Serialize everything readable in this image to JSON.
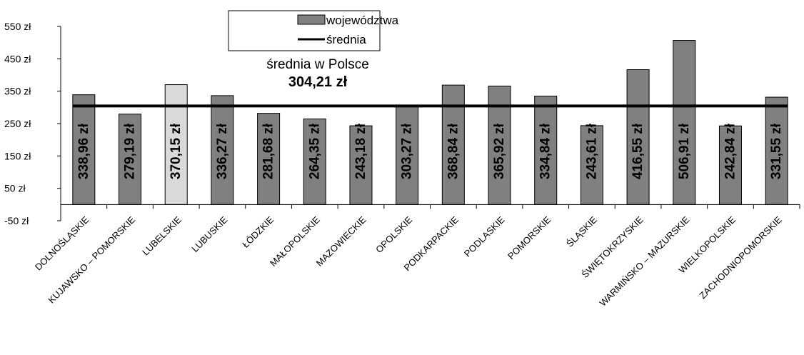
{
  "chart_data": {
    "type": "bar",
    "categories": [
      "DOLNOŚLĄSKIE",
      "KUJAWSKO – POMORSKIE",
      "LUBELSKIE",
      "LUBUSKIE",
      "ŁÓDZKIE",
      "MAŁOPOLSKIE",
      "MAZOWIECKIE",
      "OPOLSKIE",
      "PODKARPACKIE",
      "PODLASKIE",
      "POMORSKIE",
      "ŚLĄSKIE",
      "ŚWIĘTOKRZYSKIE",
      "WARMIŃSKO – MAZURSKIE",
      "WIELKOPOLSKIE",
      "ZACHODNIOPOMORSKIE"
    ],
    "series": [
      {
        "name": "województwa",
        "values": [
          338.96,
          279.19,
          370.15,
          336.27,
          281.68,
          264.35,
          243.18,
          303.27,
          368.84,
          365.92,
          334.84,
          243.61,
          416.55,
          506.91,
          242.84,
          331.55
        ],
        "labels": [
          "338,96 zł",
          "279,19 zł",
          "370,15 zł",
          "336,27 zł",
          "281,68 zł",
          "264,35 zł",
          "243,18 zł",
          "303,27 zł",
          "368,84 zł",
          "365,92 zł",
          "334,84 zł",
          "243,61 zł",
          "416,55 zł",
          "506,91 zł",
          "242,84 zł",
          "331,55 zł"
        ]
      },
      {
        "name": "średnia",
        "value": 304.21
      }
    ],
    "highlight_index": 2,
    "annotation": {
      "text": "średnia w Polsce",
      "value_text": "304,21 zł"
    },
    "ylim": [
      -50,
      550
    ],
    "yticks": [
      -50,
      50,
      150,
      250,
      350,
      450,
      550
    ],
    "ytick_labels": [
      "-50 zł",
      "50 zł",
      "150 zł",
      "250 zł",
      "350 zł",
      "450 zł",
      "550 zł"
    ],
    "colors": {
      "bar": "#808080",
      "highlight": "#d9d9d9",
      "line": "#000000"
    },
    "legend_position": "top-center",
    "grid": false,
    "title": "",
    "xlabel": "",
    "ylabel": ""
  }
}
